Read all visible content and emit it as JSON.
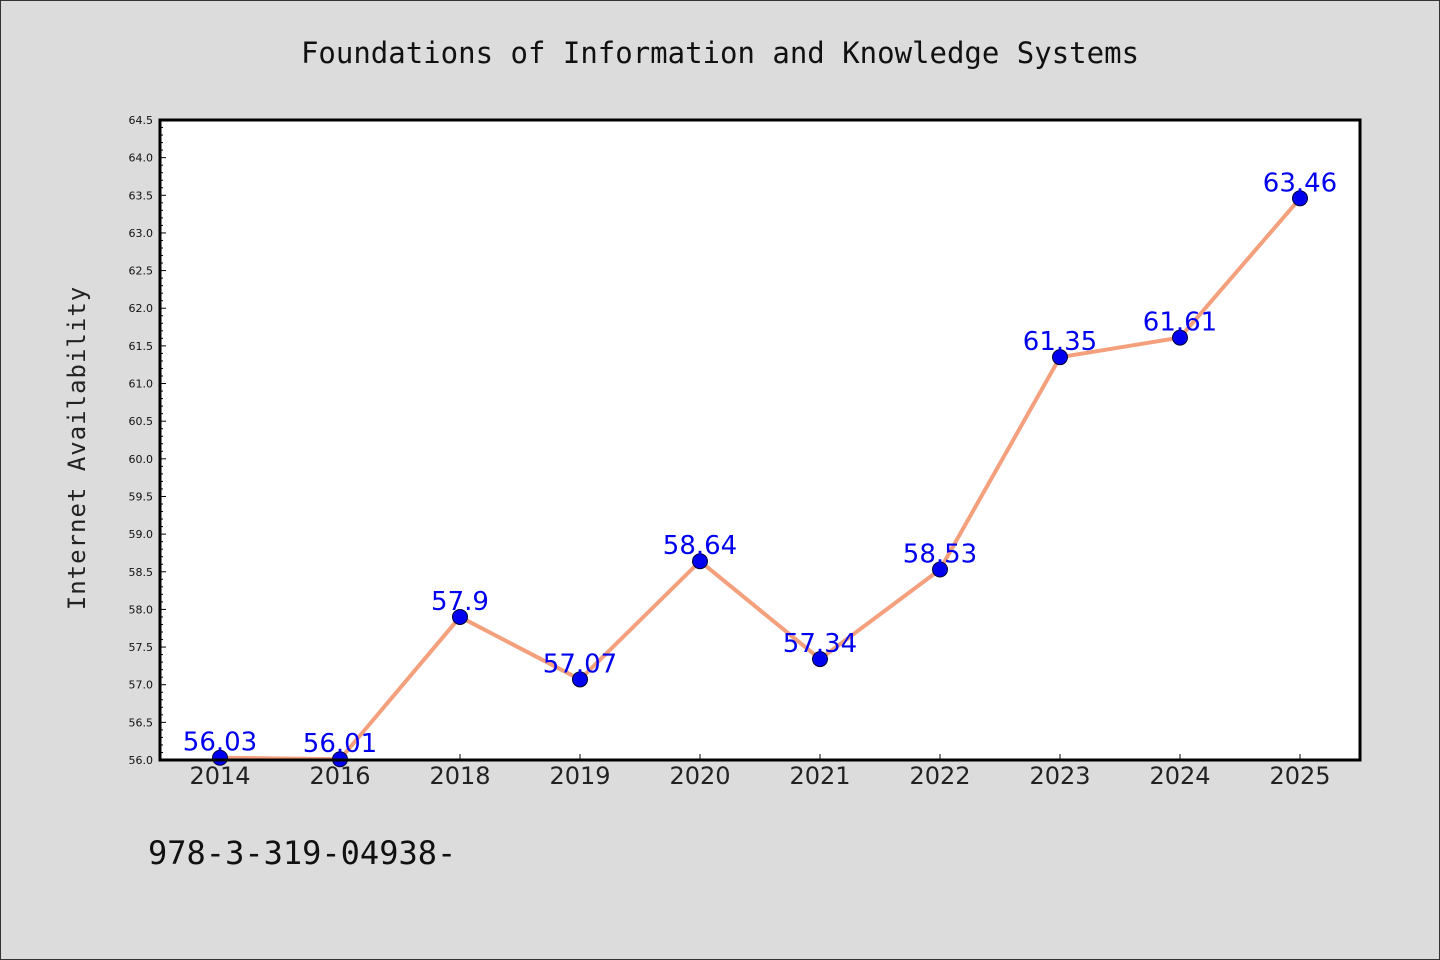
{
  "chart_data": {
    "type": "line",
    "title": "Foundations of Information and Knowledge Systems",
    "xlabel": "",
    "ylabel": "Internet Availability",
    "categories": [
      "2014",
      "2016",
      "2018",
      "2019",
      "2020",
      "2021",
      "2022",
      "2023",
      "2024",
      "2025"
    ],
    "series": [
      {
        "values": [
          56.03,
          56.01,
          57.9,
          57.07,
          58.64,
          57.34,
          58.53,
          61.35,
          61.61,
          63.46
        ],
        "labels": [
          "56.03",
          "56.01",
          "57.9",
          "57.07",
          "58.64",
          "57.34",
          "58.53",
          "61.35",
          "61.61",
          "63.46"
        ],
        "line_color": "#f4a07c",
        "marker_color": "#0000ee"
      }
    ],
    "ylim": [
      56.0,
      64.5
    ],
    "yticks": [
      "56.0",
      "56.5",
      "57.0",
      "57.5",
      "58.0",
      "58.5",
      "59.0",
      "59.5",
      "60.0",
      "60.5",
      "61.0",
      "61.5",
      "62.0",
      "62.5",
      "63.0",
      "63.5",
      "64.0",
      "64.5"
    ],
    "grid": false,
    "legend": "none",
    "annotation": "978-3-319-04938-"
  }
}
